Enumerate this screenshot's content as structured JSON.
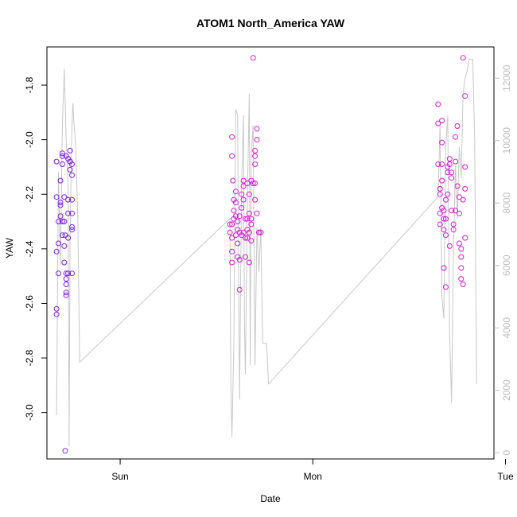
{
  "chart_data": {
    "type": "scatter",
    "title": "ATOM1 North_America YAW",
    "xlabel": "Date",
    "ylabel": "YAW",
    "x_axis": {
      "unit": "days",
      "range": [
        -0.38,
        1.94
      ],
      "ticks": [
        {
          "value": 0,
          "label": "Sun"
        },
        {
          "value": 1,
          "label": "Mon"
        },
        {
          "value": 2,
          "label": "Tue"
        }
      ]
    },
    "y_axis": {
      "range": [
        -3.17,
        -1.66
      ],
      "ticks": [
        -3.0,
        -2.8,
        -2.6,
        -2.4,
        -2.2,
        -2.0,
        -1.8
      ],
      "tick_labels": [
        "-3.0",
        "-2.8",
        "-2.6",
        "-2.4",
        "-2.2",
        "-2.0",
        "-1.8"
      ]
    },
    "y2_axis": {
      "range": [
        -200,
        13000
      ],
      "ticks": [
        0,
        2000,
        4000,
        6000,
        8000,
        10000,
        12000
      ],
      "tick_labels": [
        "0",
        "2000",
        "4000",
        "6000",
        "8000",
        "10000",
        "12000"
      ],
      "color": "#bdbdbd"
    },
    "grid": false,
    "legend": "none",
    "count_series": {
      "color": "#c8c8c8",
      "points": [
        [
          -0.33,
          1200
        ],
        [
          -0.32,
          9000
        ],
        [
          -0.31,
          6000
        ],
        [
          -0.3,
          10500
        ],
        [
          -0.29,
          12300
        ],
        [
          -0.28,
          10000
        ],
        [
          -0.27,
          8500
        ],
        [
          -0.265,
          200
        ],
        [
          -0.26,
          7000
        ],
        [
          -0.25,
          10500
        ],
        [
          -0.245,
          11200
        ],
        [
          -0.24,
          10600
        ],
        [
          -0.23,
          9800
        ],
        [
          -0.22,
          7500
        ],
        [
          -0.21,
          2900
        ],
        [
          0.57,
          7500
        ],
        [
          0.575,
          2200
        ],
        [
          0.58,
          500
        ],
        [
          0.59,
          3500
        ],
        [
          0.6,
          11000
        ],
        [
          0.61,
          10800
        ],
        [
          0.615,
          5500
        ],
        [
          0.62,
          1700
        ],
        [
          0.63,
          8500
        ],
        [
          0.64,
          10800
        ],
        [
          0.645,
          4200
        ],
        [
          0.65,
          2500
        ],
        [
          0.66,
          8000
        ],
        [
          0.67,
          11500
        ],
        [
          0.675,
          2800
        ],
        [
          0.68,
          9500
        ],
        [
          0.69,
          10500
        ],
        [
          0.7,
          2800
        ],
        [
          0.71,
          7200
        ],
        [
          0.72,
          5800
        ],
        [
          0.73,
          7200
        ],
        [
          0.74,
          3500
        ],
        [
          0.76,
          3500
        ],
        [
          0.77,
          2200
        ],
        [
          1.65,
          8200
        ],
        [
          1.66,
          10500
        ],
        [
          1.67,
          5000
        ],
        [
          1.68,
          4300
        ],
        [
          1.69,
          9800
        ],
        [
          1.7,
          10800
        ],
        [
          1.71,
          3800
        ],
        [
          1.72,
          1600
        ],
        [
          1.73,
          6500
        ],
        [
          1.74,
          9200
        ],
        [
          1.75,
          7500
        ],
        [
          1.76,
          9800
        ],
        [
          1.77,
          8800
        ],
        [
          1.78,
          11500
        ],
        [
          1.79,
          12000
        ],
        [
          1.8,
          12200
        ],
        [
          1.81,
          12600
        ],
        [
          1.82,
          12600
        ],
        [
          1.83,
          12600
        ],
        [
          1.84,
          10000
        ],
        [
          1.85,
          2200
        ]
      ]
    },
    "series": [
      {
        "color": "#7d1fe8",
        "points": [
          [
            -0.33,
            -2.08
          ],
          [
            -0.33,
            -2.21
          ],
          [
            -0.32,
            -2.3
          ],
          [
            -0.32,
            -2.38
          ],
          [
            -0.33,
            -2.41
          ],
          [
            -0.32,
            -2.49
          ],
          [
            -0.33,
            -2.62
          ],
          [
            -0.33,
            -2.64
          ],
          [
            -0.31,
            -2.15
          ],
          [
            -0.31,
            -2.24
          ],
          [
            -0.31,
            -2.28
          ],
          [
            -0.3,
            -2.35
          ],
          [
            -0.3,
            -2.05
          ],
          [
            -0.3,
            -2.06
          ],
          [
            -0.3,
            -2.09
          ],
          [
            -0.29,
            -2.21
          ],
          [
            -0.29,
            -2.3
          ],
          [
            -0.29,
            -2.39
          ],
          [
            -0.29,
            -2.45
          ],
          [
            -0.28,
            -2.49
          ],
          [
            -0.28,
            -2.51
          ],
          [
            -0.28,
            -2.53
          ],
          [
            -0.28,
            -2.57
          ],
          [
            -0.28,
            -2.56
          ],
          [
            -0.28,
            -2.06
          ],
          [
            -0.27,
            -2.07
          ],
          [
            -0.27,
            -2.22
          ],
          [
            -0.27,
            -2.27
          ],
          [
            -0.27,
            -2.36
          ],
          [
            -0.27,
            -2.49
          ],
          [
            -0.26,
            -2.08
          ],
          [
            -0.26,
            -2.04
          ],
          [
            -0.26,
            -2.08
          ],
          [
            -0.26,
            -2.11
          ],
          [
            -0.25,
            -2.09
          ],
          [
            -0.25,
            -2.13
          ],
          [
            -0.25,
            -2.22
          ],
          [
            -0.25,
            -2.27
          ],
          [
            -0.25,
            -2.32
          ],
          [
            -0.25,
            -2.33
          ],
          [
            -0.25,
            -2.49
          ],
          [
            -0.285,
            -3.14
          ],
          [
            -0.31,
            -2.23
          ],
          [
            -0.3,
            -2.3
          ],
          [
            -0.285,
            -2.35
          ]
        ]
      },
      {
        "color": "#d81ad8",
        "points": [
          [
            0.57,
            -2.31
          ],
          [
            0.57,
            -2.34
          ],
          [
            0.58,
            -2.36
          ],
          [
            0.58,
            -2.41
          ],
          [
            0.58,
            -2.45
          ],
          [
            0.58,
            -2.31
          ],
          [
            0.58,
            -2.06
          ],
          [
            0.58,
            -1.99
          ],
          [
            0.585,
            -2.15
          ],
          [
            0.59,
            -2.22
          ],
          [
            0.59,
            -2.26
          ],
          [
            0.59,
            -2.29
          ],
          [
            0.6,
            -2.23
          ],
          [
            0.6,
            -2.19
          ],
          [
            0.6,
            -2.28
          ],
          [
            0.61,
            -2.3
          ],
          [
            0.61,
            -2.33
          ],
          [
            0.61,
            -2.38
          ],
          [
            0.61,
            -2.43
          ],
          [
            0.62,
            -2.44
          ],
          [
            0.62,
            -2.55
          ],
          [
            0.62,
            -2.28
          ],
          [
            0.63,
            -2.25
          ],
          [
            0.63,
            -2.2
          ],
          [
            0.63,
            -2.35
          ],
          [
            0.64,
            -2.34
          ],
          [
            0.64,
            -2.15
          ],
          [
            0.64,
            -2.17
          ],
          [
            0.64,
            -2.22
          ],
          [
            0.65,
            -2.29
          ],
          [
            0.65,
            -2.43
          ],
          [
            0.65,
            -2.36
          ],
          [
            0.66,
            -2.33
          ],
          [
            0.66,
            -2.29
          ],
          [
            0.66,
            -2.16
          ],
          [
            0.67,
            -2.2
          ],
          [
            0.67,
            -2.27
          ],
          [
            0.67,
            -2.34
          ],
          [
            0.67,
            -2.45
          ],
          [
            0.68,
            -2.37
          ],
          [
            0.68,
            -2.31
          ],
          [
            0.68,
            -2.15
          ],
          [
            0.69,
            -1.7
          ],
          [
            0.69,
            -2.16
          ],
          [
            0.7,
            -2.04
          ],
          [
            0.7,
            -2.06
          ],
          [
            0.7,
            -2.09
          ],
          [
            0.7,
            -2.16
          ],
          [
            0.7,
            -2.22
          ],
          [
            0.71,
            -1.96
          ],
          [
            0.71,
            -2.0
          ],
          [
            0.71,
            -2.27
          ],
          [
            0.72,
            -2.34
          ],
          [
            0.72,
            -2.34
          ],
          [
            0.73,
            -2.34
          ],
          [
            0.73,
            -2.34
          ],
          [
            0.66,
            -2.36
          ],
          [
            0.6,
            -2.35
          ],
          [
            0.62,
            -2.34
          ],
          [
            0.68,
            -2.29
          ],
          [
            1.65,
            -1.87
          ],
          [
            1.65,
            -1.94
          ],
          [
            1.65,
            -2.09
          ],
          [
            1.66,
            -2.18
          ],
          [
            1.66,
            -2.2
          ],
          [
            1.66,
            -2.27
          ],
          [
            1.66,
            -2.31
          ],
          [
            1.67,
            -1.93
          ],
          [
            1.67,
            -2.01
          ],
          [
            1.67,
            -2.09
          ],
          [
            1.67,
            -2.15
          ],
          [
            1.67,
            -2.25
          ],
          [
            1.68,
            -2.26
          ],
          [
            1.68,
            -2.33
          ],
          [
            1.68,
            -2.47
          ],
          [
            1.69,
            -2.54
          ],
          [
            1.69,
            -2.35
          ],
          [
            1.69,
            -2.29
          ],
          [
            1.7,
            -2.12
          ],
          [
            1.7,
            -2.1
          ],
          [
            1.7,
            -2.2
          ],
          [
            1.71,
            -2.07
          ],
          [
            1.71,
            -2.09
          ],
          [
            1.72,
            -2.12
          ],
          [
            1.72,
            -2.14
          ],
          [
            1.72,
            -2.26
          ],
          [
            1.73,
            -2.31
          ],
          [
            1.73,
            -2.33
          ],
          [
            1.74,
            -1.99
          ],
          [
            1.74,
            -2.08
          ],
          [
            1.75,
            -1.95
          ],
          [
            1.75,
            -2.17
          ],
          [
            1.76,
            -2.21
          ],
          [
            1.76,
            -2.27
          ],
          [
            1.76,
            -2.38
          ],
          [
            1.77,
            -2.4
          ],
          [
            1.77,
            -2.43
          ],
          [
            1.77,
            -2.47
          ],
          [
            1.77,
            -2.51
          ],
          [
            1.78,
            -2.53
          ],
          [
            1.78,
            -1.7
          ],
          [
            1.79,
            -1.84
          ],
          [
            1.79,
            -2.1
          ],
          [
            1.79,
            -2.18
          ],
          [
            1.79,
            -2.36
          ],
          [
            1.69,
            -2.22
          ],
          [
            1.68,
            -2.29
          ],
          [
            1.71,
            -2.39
          ],
          [
            1.74,
            -2.26
          ],
          [
            1.78,
            -2.22
          ]
        ]
      }
    ]
  }
}
